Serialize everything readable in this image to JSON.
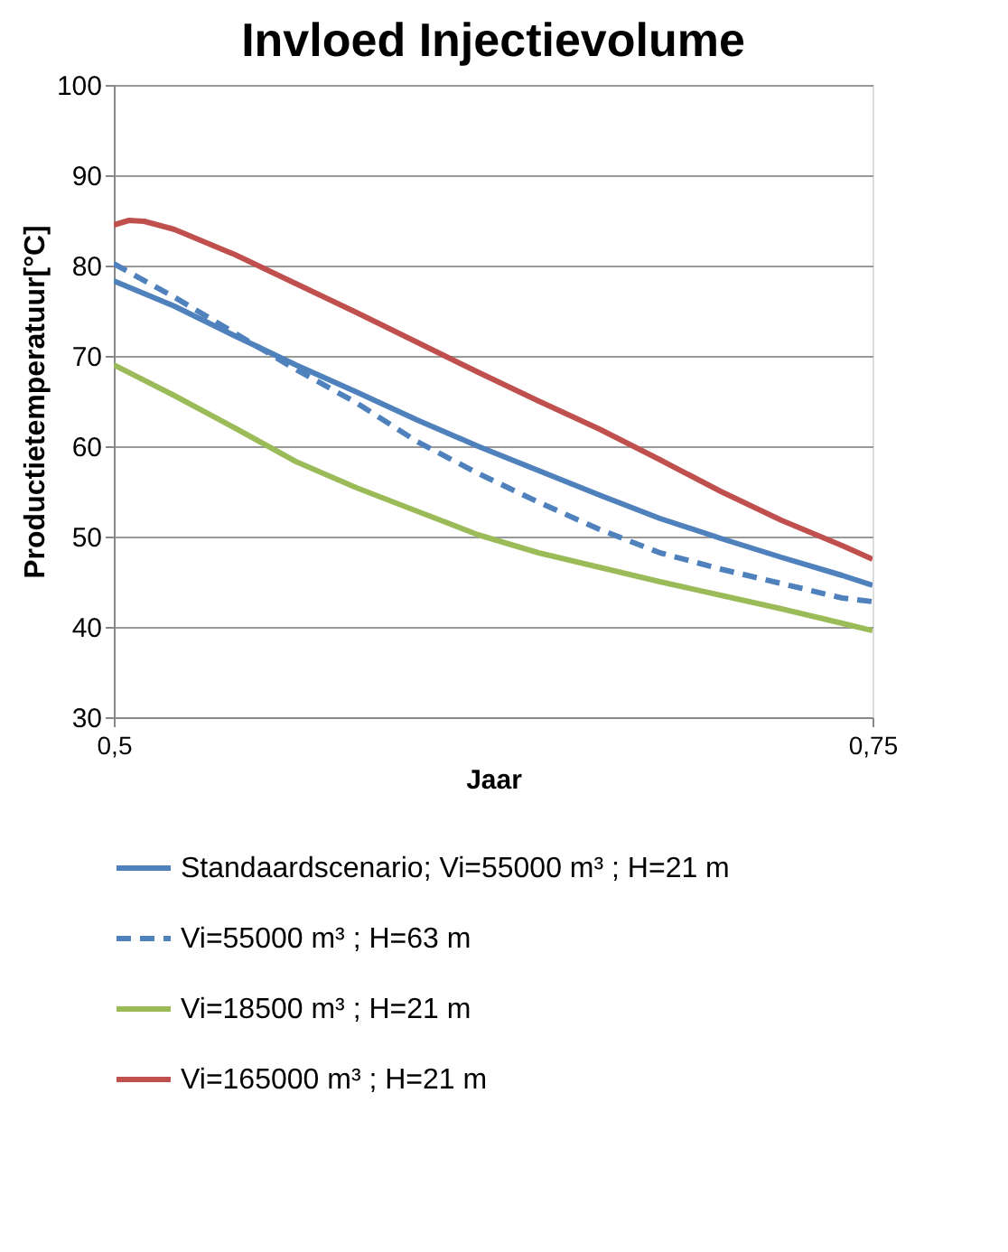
{
  "chart_data": {
    "type": "line",
    "title": "Invloed Injectievolume",
    "xlabel": "Jaar",
    "ylabel": "Productietemperatuur[°C]",
    "xlim": [
      0.5,
      0.75
    ],
    "xticks": [
      {
        "value": 0.5,
        "label": "0,5"
      },
      {
        "value": 0.75,
        "label": "0,75"
      }
    ],
    "ylim": [
      30,
      100
    ],
    "yticks": [
      30,
      40,
      50,
      60,
      70,
      80,
      90,
      100
    ],
    "grid": "y",
    "legend": "bottom",
    "series": [
      {
        "name": "Standaardscenario; Vi=55000 m³ ; H=21 m",
        "color": "#4f81bd",
        "line_style": "solid",
        "x": [
          0.5,
          0.52,
          0.54,
          0.56,
          0.58,
          0.6,
          0.62,
          0.64,
          0.66,
          0.68,
          0.7,
          0.72,
          0.74,
          0.75
        ],
        "values": [
          78.3,
          75.5,
          72.2,
          69,
          66,
          62.9,
          60,
          57.3,
          54.6,
          52,
          49.8,
          47.7,
          45.7,
          44.6
        ]
      },
      {
        "name": "Vi=55000 m³ ;  H=63 m",
        "color": "#4f81bd",
        "line_style": "dashed",
        "x": [
          0.5,
          0.52,
          0.54,
          0.56,
          0.58,
          0.6,
          0.62,
          0.64,
          0.66,
          0.68,
          0.7,
          0.72,
          0.74,
          0.75
        ],
        "values": [
          80.2,
          76.5,
          72.5,
          68.5,
          64.8,
          60.5,
          57,
          53.8,
          50.8,
          48.2,
          46.4,
          44.8,
          43.2,
          42.8
        ]
      },
      {
        "name": "Vi=18500 m³ ; H=21 m",
        "color": "#9bbb59",
        "line_style": "solid",
        "x": [
          0.5,
          0.52,
          0.54,
          0.56,
          0.58,
          0.6,
          0.62,
          0.64,
          0.66,
          0.68,
          0.7,
          0.72,
          0.74,
          0.75
        ],
        "values": [
          69,
          65.6,
          62,
          58.3,
          55.4,
          52.8,
          50.2,
          48.2,
          46.6,
          45,
          43.5,
          42,
          40.4,
          39.6
        ]
      },
      {
        "name": "Vi=165000 m³ ; H=21 m",
        "color": "#c0504d",
        "line_style": "solid",
        "x": [
          0.5,
          0.505,
          0.51,
          0.52,
          0.54,
          0.56,
          0.58,
          0.6,
          0.62,
          0.64,
          0.66,
          0.68,
          0.7,
          0.72,
          0.74,
          0.75
        ],
        "values": [
          84.5,
          85,
          84.9,
          84,
          81.2,
          78,
          74.8,
          71.5,
          68.2,
          65,
          61.9,
          58.5,
          55,
          51.8,
          49,
          47.5
        ]
      }
    ]
  }
}
